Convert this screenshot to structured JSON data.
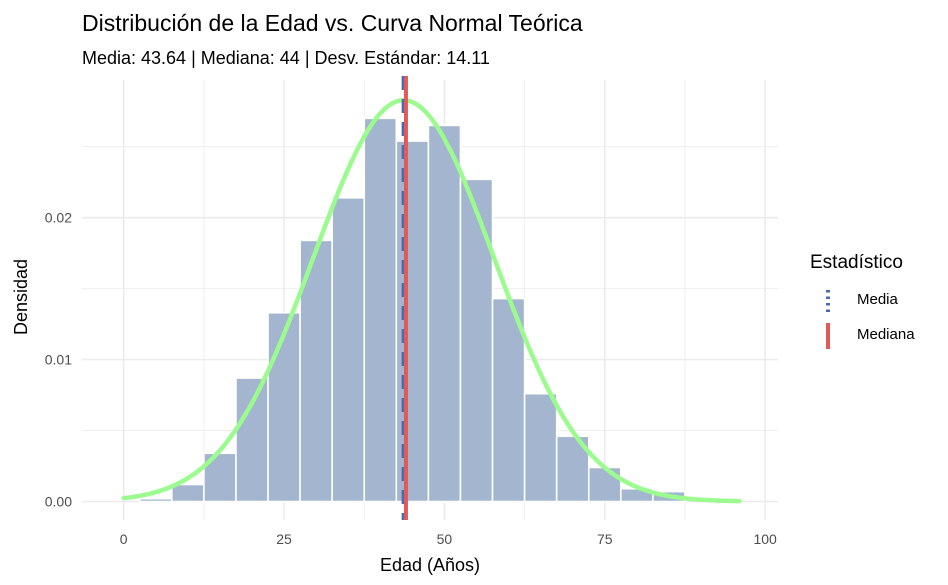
{
  "chart_data": {
    "type": "bar",
    "title": "Distribución de la Edad vs. Curva Normal Teórica",
    "subtitle": "Media: 43.64 | Mediana: 44 | Desv. Estándar: 14.11",
    "xlabel": "Edad (Años)",
    "ylabel": "Densidad",
    "xlim": [
      -6.5,
      102
    ],
    "ylim": [
      -0.0013,
      0.0297
    ],
    "x_ticks": [
      {
        "value": 0,
        "label": "0"
      },
      {
        "value": 25,
        "label": "25"
      },
      {
        "value": 50,
        "label": "50"
      },
      {
        "value": 75,
        "label": "75"
      },
      {
        "value": 100,
        "label": "100"
      }
    ],
    "y_ticks": [
      {
        "value": 0.0,
        "label": "0.00"
      },
      {
        "value": 0.01,
        "label": "0.01"
      },
      {
        "value": 0.02,
        "label": "0.02"
      }
    ],
    "grid": true,
    "bin_width": 5,
    "bins": [
      {
        "start": 2.5,
        "end": 7.5,
        "value": 0.0002
      },
      {
        "start": 7.5,
        "end": 12.5,
        "value": 0.0012
      },
      {
        "start": 12.5,
        "end": 17.5,
        "value": 0.0034
      },
      {
        "start": 17.5,
        "end": 22.5,
        "value": 0.0087
      },
      {
        "start": 22.5,
        "end": 27.5,
        "value": 0.0133
      },
      {
        "start": 27.5,
        "end": 32.5,
        "value": 0.0184
      },
      {
        "start": 32.5,
        "end": 37.5,
        "value": 0.0214
      },
      {
        "start": 37.5,
        "end": 42.5,
        "value": 0.027
      },
      {
        "start": 42.5,
        "end": 47.5,
        "value": 0.0254
      },
      {
        "start": 47.5,
        "end": 52.5,
        "value": 0.0265
      },
      {
        "start": 52.5,
        "end": 57.5,
        "value": 0.0227
      },
      {
        "start": 57.5,
        "end": 62.5,
        "value": 0.0143
      },
      {
        "start": 62.5,
        "end": 67.5,
        "value": 0.0076
      },
      {
        "start": 67.5,
        "end": 72.5,
        "value": 0.0046
      },
      {
        "start": 72.5,
        "end": 77.5,
        "value": 0.0024
      },
      {
        "start": 77.5,
        "end": 82.5,
        "value": 0.0009
      },
      {
        "start": 82.5,
        "end": 87.5,
        "value": 0.0007
      }
    ],
    "normal_curve": {
      "mean": 43.64,
      "sd": 14.11,
      "x_range": [
        0,
        96
      ]
    },
    "reference_lines": [
      {
        "name": "Media",
        "value": 43.64,
        "style": "dashed",
        "color": "#4a6aad"
      },
      {
        "name": "Mediana",
        "value": 44,
        "style": "solid",
        "color": "#e05a5a"
      }
    ],
    "colors": {
      "bar_fill": "#a3b5cf",
      "curve": "#9cfb8f",
      "grid": "#ebebeb"
    },
    "legend": {
      "title": "Estadístico",
      "placement": "right",
      "entries": [
        "Media",
        "Mediana"
      ]
    }
  }
}
